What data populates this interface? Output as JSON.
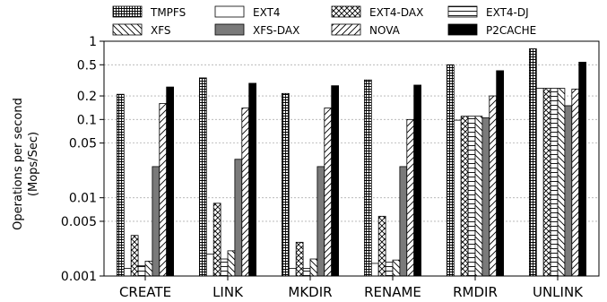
{
  "chart_data": {
    "type": "bar",
    "title": "",
    "xlabel": "",
    "ylabel": [
      "Operations per second",
      "(Mops/Sec)"
    ],
    "yscale": "log",
    "ylim": [
      0.001,
      1
    ],
    "yticks": [
      0.001,
      0.005,
      0.01,
      0.05,
      0.1,
      0.2,
      0.5,
      1
    ],
    "ytick_labels": [
      "0.001",
      "0.005",
      "0.01",
      "0.05",
      "0.1",
      "0.2",
      "0.5",
      "1"
    ],
    "grid": "horizontal dashed at major ticks",
    "legend": "top, outside plot area, 4 columns",
    "categories": [
      "CREATE",
      "LINK",
      "MKDIR",
      "RENAME",
      "RMDIR",
      "UNLINK"
    ],
    "series": [
      {
        "name": "TMPFS",
        "pattern": "grid",
        "values": [
          0.21,
          0.34,
          0.215,
          0.32,
          0.5,
          0.8
        ]
      },
      {
        "name": "EXT4",
        "pattern": "white",
        "values": [
          0.00125,
          0.0019,
          0.00125,
          0.00145,
          0.098,
          0.25
        ]
      },
      {
        "name": "EXT4-DAX",
        "pattern": "crosshatch",
        "values": [
          0.0033,
          0.0085,
          0.0027,
          0.0058,
          0.11,
          0.25
        ]
      },
      {
        "name": "EXT4-DJ",
        "pattern": "hlines",
        "values": [
          0.00135,
          0.00165,
          0.00125,
          0.0015,
          0.11,
          0.25
        ]
      },
      {
        "name": "XFS",
        "pattern": "backslash",
        "values": [
          0.00155,
          0.0021,
          0.00165,
          0.0016,
          0.11,
          0.25
        ]
      },
      {
        "name": "XFS-DAX",
        "pattern": "gray",
        "values": [
          0.025,
          0.031,
          0.025,
          0.025,
          0.105,
          0.15
        ]
      },
      {
        "name": "NOVA",
        "pattern": "slash",
        "values": [
          0.16,
          0.14,
          0.14,
          0.1,
          0.2,
          0.245
        ]
      },
      {
        "name": "P2CACHE",
        "pattern": "black",
        "values": [
          0.26,
          0.29,
          0.27,
          0.275,
          0.42,
          0.54
        ]
      }
    ]
  }
}
